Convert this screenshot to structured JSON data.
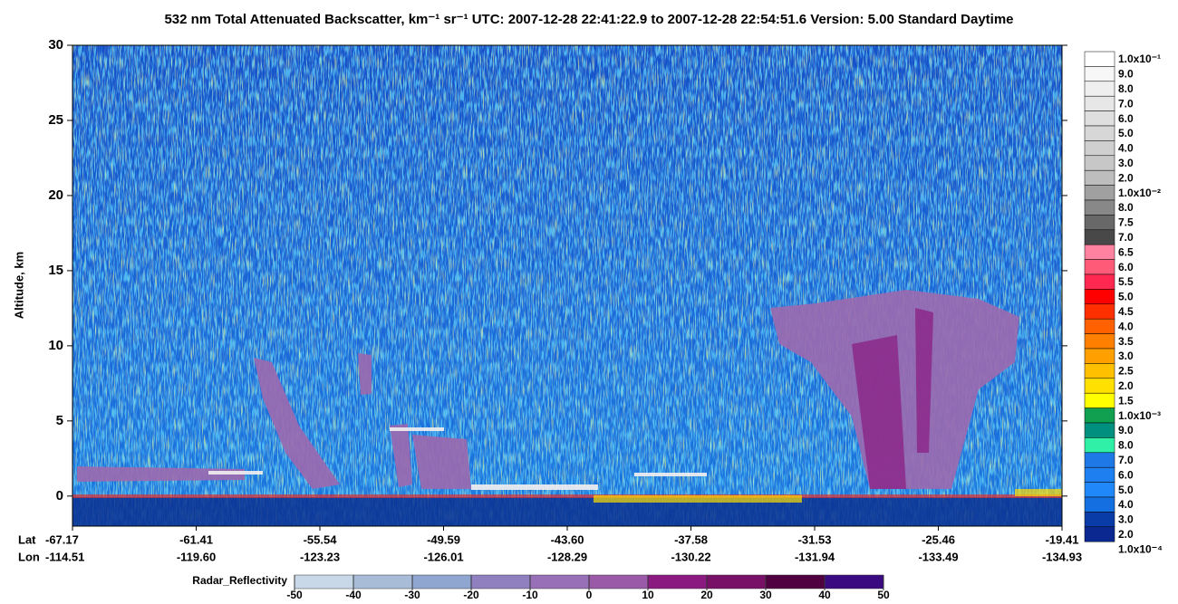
{
  "chart_data": {
    "type": "curtain",
    "title": "532 nm Total Attenuated Backscatter, km⁻¹ sr⁻¹    UTC:  2007-12-28 22:41:22.9  to  2007-12-28 22:54:51.6    Version: 5.00  Standard  Daytime",
    "ylabel": "Altitude, km",
    "ylim": [
      -2,
      30
    ],
    "yticks": [
      0,
      5,
      10,
      15,
      20,
      25,
      30
    ],
    "x_rows": [
      {
        "name": "Lat",
        "labels": [
          "-67.17",
          "-61.41",
          "-55.54",
          "-49.59",
          "-43.60",
          "-37.58",
          "-31.53",
          "-25.46",
          "-19.41"
        ]
      },
      {
        "name": "Lon",
        "labels": [
          "-114.51",
          "-119.60",
          "-123.23",
          "-126.01",
          "-128.29",
          "-130.22",
          "-131.94",
          "-133.49",
          "-134.93"
        ]
      }
    ],
    "colorbar": {
      "labels": [
        "1.0x10⁻¹",
        "9.0",
        "8.0",
        "7.0",
        "6.0",
        "5.0",
        "4.0",
        "3.0",
        "2.0",
        "1.0x10⁻²",
        "8.0",
        "7.5",
        "7.0",
        "6.5",
        "6.0",
        "5.5",
        "5.0",
        "4.5",
        "4.0",
        "3.5",
        "3.0",
        "2.5",
        "2.0",
        "1.5",
        "1.0x10⁻³",
        "9.0",
        "8.0",
        "7.0",
        "6.0",
        "5.0",
        "4.0",
        "3.0",
        "2.0",
        "1.0x10⁻⁴"
      ],
      "colors": [
        "#ffffff",
        "#f7f7f7",
        "#efefef",
        "#e7e7e7",
        "#dfdfdf",
        "#d7d7d7",
        "#cfcfcf",
        "#c7c7c7",
        "#bdbdbd",
        "#a0a0a0",
        "#888888",
        "#686868",
        "#484848",
        "#ff82a0",
        "#ff5a78",
        "#ff2850",
        "#ff0000",
        "#ff3000",
        "#ff6000",
        "#ff8000",
        "#ffa000",
        "#ffc000",
        "#ffe000",
        "#ffff00",
        "#10a050",
        "#009080",
        "#30f0a8",
        "#1e78e6",
        "#1e80f0",
        "#2088f8",
        "#1470e0",
        "#0a3ca8",
        "#0a2890"
      ]
    },
    "radar_colorbar": {
      "label": "Radar_Reflectivity",
      "ticks": [
        -50,
        -40,
        -30,
        -20,
        -10,
        0,
        10,
        20,
        30,
        40,
        50
      ],
      "colors": [
        "#c8d8e8",
        "#a8bcd8",
        "#8ea6d0",
        "#9080c0",
        "#9870b8",
        "#9a5aa8",
        "#8a1a80",
        "#781068",
        "#500040",
        "#3a0a80"
      ]
    }
  }
}
